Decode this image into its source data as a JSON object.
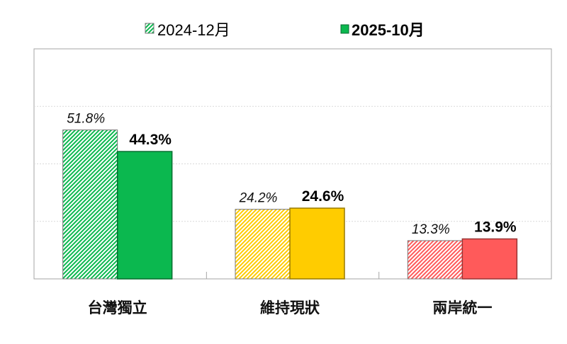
{
  "chart_data": {
    "type": "bar",
    "categories": [
      "台灣獨立",
      "維持現狀",
      "兩岸統一"
    ],
    "series": [
      {
        "name": "2024-12月",
        "values": [
          51.8,
          24.2,
          13.3
        ],
        "labels": [
          "51.8%",
          "24.2%",
          "13.3%"
        ],
        "style": "hatched"
      },
      {
        "name": "2025-10月",
        "values": [
          44.3,
          24.6,
          13.9
        ],
        "labels": [
          "44.3%",
          "24.6%",
          "13.9%"
        ],
        "style": "solid"
      }
    ],
    "category_colors": [
      "#0bb84f",
      "#ffcc00",
      "#ff5a5a"
    ],
    "ylim": [
      0,
      80
    ],
    "grid": true,
    "gridlines": [
      20,
      40,
      60
    ],
    "legend_placement": "top",
    "unit": "%"
  }
}
